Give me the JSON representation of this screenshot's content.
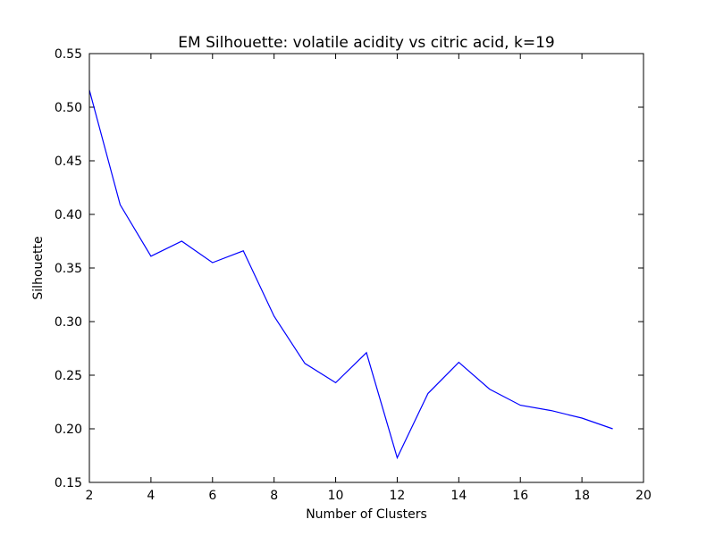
{
  "chart_data": {
    "type": "line",
    "title": "EM Silhouette: volatile acidity vs citric acid, k=19",
    "xlabel": "Number of Clusters",
    "ylabel": "Silhouette",
    "xlim": [
      2,
      20
    ],
    "ylim": [
      0.15,
      0.55
    ],
    "xticks": [
      2,
      4,
      6,
      8,
      10,
      12,
      14,
      16,
      18,
      20
    ],
    "yticks": [
      0.15,
      0.2,
      0.25,
      0.3,
      0.35,
      0.4,
      0.45,
      0.5,
      0.55
    ],
    "grid": false,
    "series": [
      {
        "color": "#0000ff",
        "x": [
          2,
          3,
          4,
          5,
          6,
          7,
          8,
          9,
          10,
          11,
          12,
          13,
          14,
          15,
          16,
          17,
          18,
          19
        ],
        "y": [
          0.516,
          0.409,
          0.361,
          0.375,
          0.355,
          0.366,
          0.305,
          0.261,
          0.243,
          0.271,
          0.173,
          0.233,
          0.262,
          0.237,
          0.222,
          0.217,
          0.21,
          0.2
        ]
      }
    ]
  }
}
